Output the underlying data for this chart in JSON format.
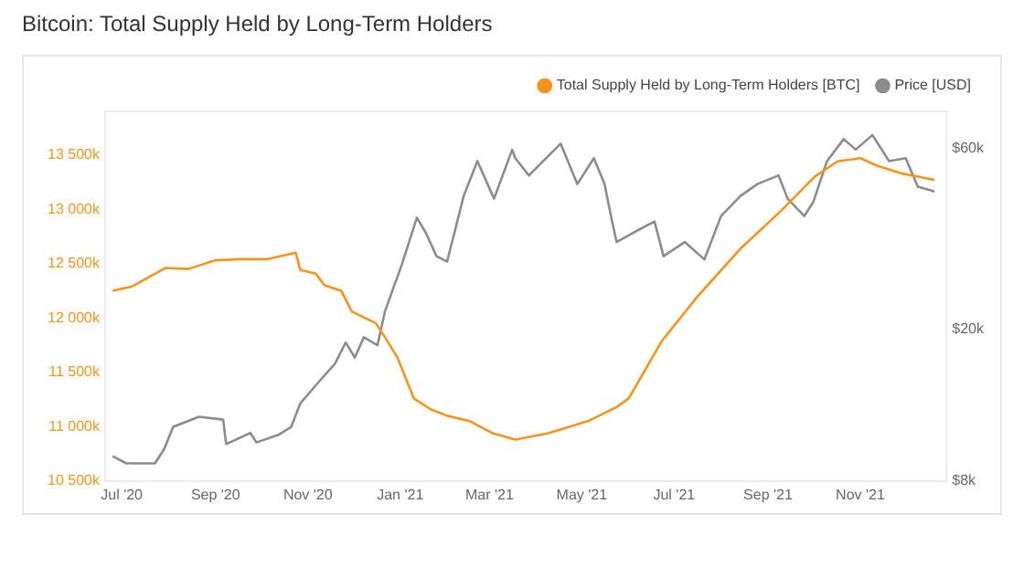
{
  "chart_data": {
    "type": "line",
    "title": "Bitcoin: Total Supply Held by Long-Term Holders",
    "xlim": [
      "2020-06-20",
      "2021-12-28"
    ],
    "xticks": [
      {
        "value": "2020-07-01",
        "label": "Jul '20"
      },
      {
        "value": "2020-09-01",
        "label": "Sep '20"
      },
      {
        "value": "2020-11-01",
        "label": "Nov '20"
      },
      {
        "value": "2021-01-01",
        "label": "Jan '21"
      },
      {
        "value": "2021-03-01",
        "label": "Mar '21"
      },
      {
        "value": "2021-05-01",
        "label": "May '21"
      },
      {
        "value": "2021-07-01",
        "label": "Jul '21"
      },
      {
        "value": "2021-09-01",
        "label": "Sep '21"
      },
      {
        "value": "2021-11-01",
        "label": "Nov '21"
      }
    ],
    "ylim": [
      10500,
      13900
    ],
    "yticks": [
      {
        "value": 10500,
        "label": "10 500k"
      },
      {
        "value": 11000,
        "label": "11 000k"
      },
      {
        "value": 11500,
        "label": "11 500k"
      },
      {
        "value": 12000,
        "label": "12 000k"
      },
      {
        "value": 12500,
        "label": "12 500k"
      },
      {
        "value": 13000,
        "label": "13 000k"
      },
      {
        "value": 13500,
        "label": "13 500k"
      }
    ],
    "y2lim": [
      8000,
      75000
    ],
    "y2ticks": [
      {
        "value": 8000,
        "label": "$8k"
      },
      {
        "value": 20000,
        "label": "$20k"
      },
      {
        "value": 60000,
        "label": "$60k"
      }
    ],
    "log": "y2",
    "legend": "top right",
    "marker": "none",
    "series": [
      {
        "name": "Total Supply Held by Long-Term Holders [BTC]",
        "color": "#f7931a",
        "x": [
          "2020-06-25",
          "2020-07-08",
          "2020-07-30",
          "2020-08-14",
          "2020-09-01",
          "2020-09-17",
          "2020-10-05",
          "2020-10-24",
          "2020-10-27",
          "2020-11-06",
          "2020-11-12",
          "2020-11-23",
          "2020-11-30",
          "2020-12-16",
          "2020-12-22",
          "2020-12-30",
          "2021-01-10",
          "2021-01-21",
          "2021-02-01",
          "2021-02-16",
          "2021-03-03",
          "2021-03-18",
          "2021-04-09",
          "2021-05-05",
          "2021-05-24",
          "2021-06-01",
          "2021-06-23",
          "2021-07-16",
          "2021-08-14",
          "2021-09-10",
          "2021-10-02",
          "2021-10-17",
          "2021-11-01",
          "2021-11-12",
          "2021-11-28",
          "2021-12-20"
        ],
        "values": [
          12250,
          12290,
          12460,
          12450,
          12530,
          12540,
          12540,
          12600,
          12440,
          12410,
          12300,
          12250,
          12060,
          11950,
          11820,
          11640,
          11260,
          11160,
          11100,
          11050,
          10940,
          10880,
          10940,
          11050,
          11180,
          11260,
          11790,
          12190,
          12640,
          12990,
          13300,
          13440,
          13470,
          13400,
          13330,
          13270
        ]
      },
      {
        "name": "Price [USD]",
        "color": "#8c8c8c",
        "axis": "y2",
        "x": [
          "2020-06-25",
          "2020-07-04",
          "2020-07-23",
          "2020-07-29",
          "2020-08-04",
          "2020-08-21",
          "2020-09-06",
          "2020-09-08",
          "2020-09-24",
          "2020-09-28",
          "2020-10-13",
          "2020-10-21",
          "2020-10-27",
          "2020-11-07",
          "2020-11-19",
          "2020-11-26",
          "2020-12-02",
          "2020-12-08",
          "2020-12-17",
          "2020-12-22",
          "2021-01-02",
          "2021-01-12",
          "2021-01-18",
          "2021-01-25",
          "2021-02-01",
          "2021-02-12",
          "2021-02-21",
          "2021-03-04",
          "2021-03-16",
          "2021-03-18",
          "2021-03-27",
          "2021-04-17",
          "2021-04-28",
          "2021-05-09",
          "2021-05-16",
          "2021-05-21",
          "2021-05-24",
          "2021-06-07",
          "2021-06-18",
          "2021-06-24",
          "2021-07-08",
          "2021-07-21",
          "2021-08-01",
          "2021-08-14",
          "2021-08-25",
          "2021-09-08",
          "2021-09-14",
          "2021-09-25",
          "2021-10-01",
          "2021-10-10",
          "2021-10-21",
          "2021-10-29",
          "2021-11-09",
          "2021-11-20",
          "2021-12-01",
          "2021-12-09",
          "2021-12-20"
        ],
        "values": [
          9300,
          8900,
          8900,
          9700,
          11100,
          11800,
          11600,
          10000,
          10700,
          10100,
          10600,
          11100,
          12800,
          14400,
          16300,
          18500,
          16900,
          19100,
          18200,
          22400,
          29600,
          39400,
          35900,
          31200,
          30200,
          45000,
          55500,
          44200,
          59500,
          56500,
          50900,
          61700,
          48300,
          56500,
          48300,
          38500,
          34000,
          36500,
          38500,
          31200,
          34000,
          30600,
          39800,
          45000,
          48300,
          50900,
          44200,
          39800,
          43400,
          55500,
          63400,
          59500,
          65000,
          55500,
          56500,
          47500,
          46200
        ]
      }
    ]
  }
}
